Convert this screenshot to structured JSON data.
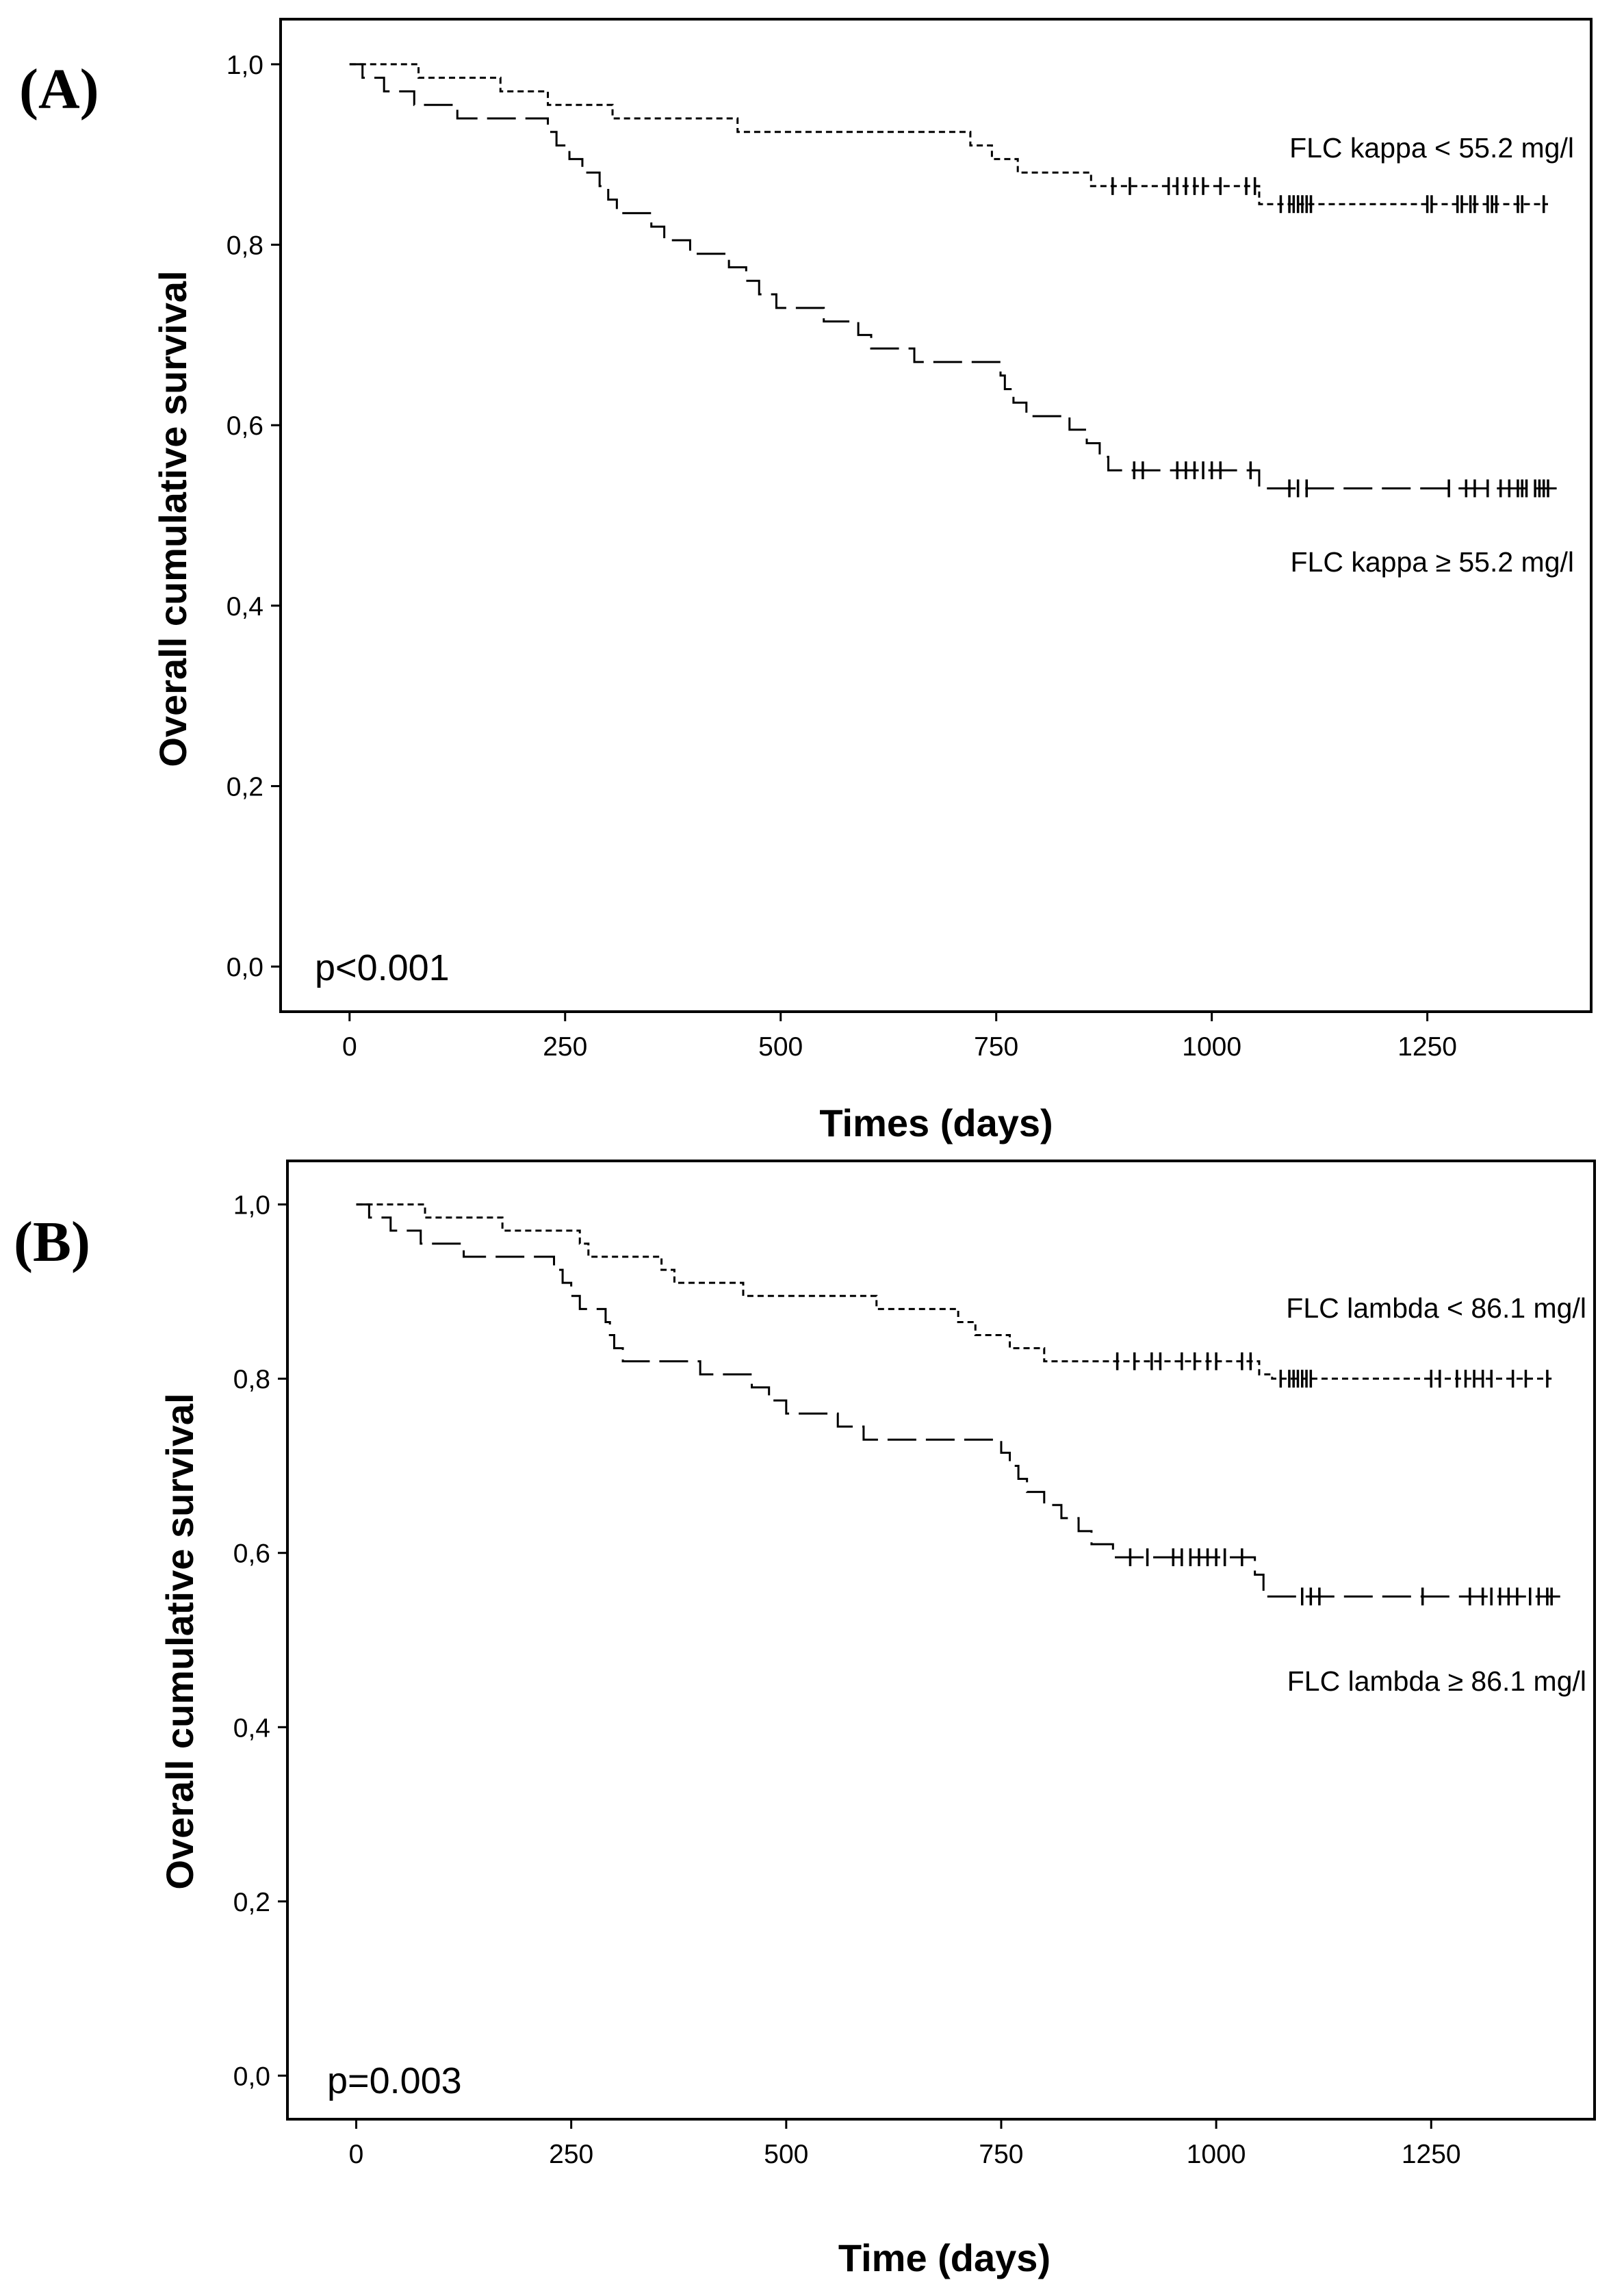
{
  "chart_data": [
    {
      "type": "line",
      "subtype": "kaplan-meier",
      "panel_label": "(A)",
      "xlabel": "Times (days)",
      "ylabel": "Overall cumulative survival",
      "xlim": [
        -80,
        1440
      ],
      "ylim": [
        -0.05,
        1.05
      ],
      "xticks": [
        0,
        250,
        500,
        750,
        1000,
        1250
      ],
      "yticks": [
        0.0,
        0.2,
        0.4,
        0.6,
        0.8,
        1.0
      ],
      "ytick_labels": [
        "0,0",
        "0,2",
        "0,4",
        "0,6",
        "0,8",
        "1,0"
      ],
      "annotation": "p<0.001",
      "series": [
        {
          "name": "FLC kappa < 55.2 mg/l",
          "line_style": "short-dash",
          "steps": [
            [
              0,
              1.0
            ],
            [
              80,
              0.985
            ],
            [
              175,
              0.97
            ],
            [
              230,
              0.955
            ],
            [
              305,
              0.94
            ],
            [
              450,
              0.925
            ],
            [
              720,
              0.91
            ],
            [
              745,
              0.895
            ],
            [
              775,
              0.88
            ],
            [
              860,
              0.865
            ],
            [
              1055,
              0.845
            ]
          ],
          "end_x": 1390,
          "censor_x": [
            885,
            905,
            950,
            960,
            970,
            980,
            990,
            1010,
            1040,
            1050,
            1080,
            1090,
            1095,
            1100,
            1105,
            1110,
            1115,
            1250,
            1255,
            1285,
            1290,
            1300,
            1305,
            1320,
            1325,
            1330,
            1355,
            1360,
            1385
          ]
        },
        {
          "name": "FLC kappa ≥ 55.2 mg/l",
          "line_style": "long-dash",
          "steps": [
            [
              0,
              1.0
            ],
            [
              15,
              0.985
            ],
            [
              40,
              0.97
            ],
            [
              75,
              0.955
            ],
            [
              125,
              0.94
            ],
            [
              230,
              0.925
            ],
            [
              240,
              0.91
            ],
            [
              255,
              0.895
            ],
            [
              270,
              0.88
            ],
            [
              290,
              0.865
            ],
            [
              300,
              0.85
            ],
            [
              310,
              0.835
            ],
            [
              350,
              0.82
            ],
            [
              365,
              0.805
            ],
            [
              395,
              0.79
            ],
            [
              440,
              0.775
            ],
            [
              460,
              0.76
            ],
            [
              475,
              0.745
            ],
            [
              495,
              0.73
            ],
            [
              550,
              0.715
            ],
            [
              590,
              0.7
            ],
            [
              605,
              0.685
            ],
            [
              655,
              0.67
            ],
            [
              755,
              0.655
            ],
            [
              760,
              0.64
            ],
            [
              770,
              0.625
            ],
            [
              785,
              0.61
            ],
            [
              835,
              0.595
            ],
            [
              855,
              0.58
            ],
            [
              870,
              0.565
            ],
            [
              880,
              0.55
            ],
            [
              1055,
              0.53
            ]
          ],
          "end_x": 1400,
          "censor_x": [
            910,
            920,
            960,
            970,
            980,
            990,
            1000,
            1010,
            1045,
            1090,
            1100,
            1110,
            1275,
            1295,
            1305,
            1320,
            1335,
            1345,
            1355,
            1360,
            1365,
            1375,
            1380,
            1385,
            1390
          ]
        }
      ],
      "curve_labels": [
        "FLC kappa < 55.2 mg/l",
        "FLC kappa ≥ 55.2 mg/l"
      ]
    },
    {
      "type": "line",
      "subtype": "kaplan-meier",
      "panel_label": "(B)",
      "xlabel": "Time (days)",
      "ylabel": "Overall cumulative survival",
      "xlim": [
        -80,
        1440
      ],
      "ylim": [
        -0.05,
        1.05
      ],
      "xticks": [
        0,
        250,
        500,
        750,
        1000,
        1250
      ],
      "yticks": [
        0.0,
        0.2,
        0.4,
        0.6,
        0.8,
        1.0
      ],
      "ytick_labels": [
        "0,0",
        "0,2",
        "0,4",
        "0,6",
        "0,8",
        "1,0"
      ],
      "annotation": "p=0.003",
      "series": [
        {
          "name": "FLC lambda < 86.1 mg/l",
          "line_style": "short-dash",
          "steps": [
            [
              0,
              1.0
            ],
            [
              80,
              0.985
            ],
            [
              170,
              0.97
            ],
            [
              260,
              0.955
            ],
            [
              270,
              0.94
            ],
            [
              355,
              0.925
            ],
            [
              370,
              0.91
            ],
            [
              450,
              0.895
            ],
            [
              605,
              0.88
            ],
            [
              700,
              0.865
            ],
            [
              720,
              0.85
            ],
            [
              760,
              0.835
            ],
            [
              800,
              0.82
            ],
            [
              1050,
              0.805
            ],
            [
              1065,
              0.8
            ]
          ],
          "end_x": 1390,
          "censor_x": [
            885,
            905,
            925,
            935,
            960,
            975,
            990,
            1000,
            1030,
            1040,
            1075,
            1085,
            1090,
            1095,
            1100,
            1105,
            1110,
            1250,
            1260,
            1280,
            1290,
            1300,
            1310,
            1320,
            1345,
            1360,
            1385
          ]
        },
        {
          "name": "FLC lambda ≥ 86.1 mg/l",
          "line_style": "long-dash",
          "steps": [
            [
              0,
              1.0
            ],
            [
              15,
              0.985
            ],
            [
              40,
              0.97
            ],
            [
              75,
              0.955
            ],
            [
              125,
              0.94
            ],
            [
              230,
              0.925
            ],
            [
              240,
              0.91
            ],
            [
              250,
              0.895
            ],
            [
              260,
              0.88
            ],
            [
              290,
              0.865
            ],
            [
              295,
              0.85
            ],
            [
              300,
              0.835
            ],
            [
              310,
              0.82
            ],
            [
              400,
              0.805
            ],
            [
              460,
              0.79
            ],
            [
              480,
              0.775
            ],
            [
              500,
              0.76
            ],
            [
              560,
              0.745
            ],
            [
              590,
              0.73
            ],
            [
              750,
              0.715
            ],
            [
              760,
              0.7
            ],
            [
              770,
              0.685
            ],
            [
              780,
              0.67
            ],
            [
              800,
              0.655
            ],
            [
              820,
              0.64
            ],
            [
              840,
              0.625
            ],
            [
              855,
              0.61
            ],
            [
              880,
              0.595
            ],
            [
              1045,
              0.575
            ],
            [
              1055,
              0.55
            ]
          ],
          "end_x": 1400,
          "censor_x": [
            900,
            920,
            950,
            960,
            970,
            980,
            990,
            1000,
            1010,
            1030,
            1100,
            1110,
            1120,
            1240,
            1295,
            1310,
            1320,
            1330,
            1340,
            1350,
            1365,
            1375,
            1385,
            1390
          ]
        }
      ],
      "curve_labels": [
        "FLC lambda < 86.1 mg/l",
        "FLC lambda ≥ 86.1 mg/l"
      ]
    }
  ]
}
